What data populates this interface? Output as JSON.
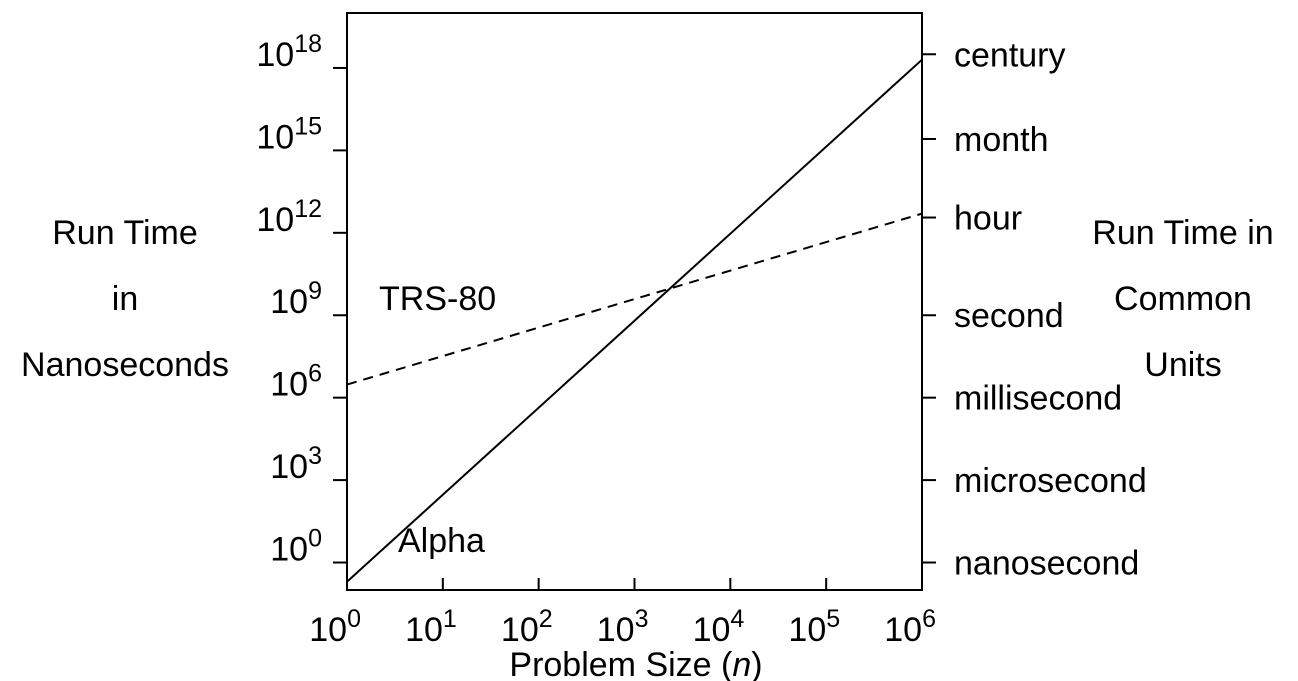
{
  "chart_data": {
    "type": "line",
    "x_scale": "log",
    "y_scale": "log",
    "xlim": [
      1,
      1000000
    ],
    "ylim": [
      0.1,
      1e+20
    ],
    "xlabel_prefix": "Problem Size (",
    "xlabel_var": "n",
    "xlabel_suffix": ")",
    "ylabel_left": [
      "Run Time",
      "in",
      "Nanoseconds"
    ],
    "ylabel_right": [
      "Run Time in",
      "Common",
      "Units"
    ],
    "x_ticks": [
      {
        "value": 1,
        "base": "10",
        "exp": "0"
      },
      {
        "value": 10,
        "base": "10",
        "exp": "1"
      },
      {
        "value": 100,
        "base": "10",
        "exp": "2"
      },
      {
        "value": 1000,
        "base": "10",
        "exp": "3"
      },
      {
        "value": 10000,
        "base": "10",
        "exp": "4"
      },
      {
        "value": 100000,
        "base": "10",
        "exp": "5"
      },
      {
        "value": 1000000,
        "base": "10",
        "exp": "6"
      }
    ],
    "y_ticks_left": [
      {
        "value": 1,
        "base": "10",
        "exp": "0"
      },
      {
        "value": 1000,
        "base": "10",
        "exp": "3"
      },
      {
        "value": 1000000,
        "base": "10",
        "exp": "6"
      },
      {
        "value": 1000000000.0,
        "base": "10",
        "exp": "9"
      },
      {
        "value": 1000000000000.0,
        "base": "10",
        "exp": "12"
      },
      {
        "value": 1000000000000000.0,
        "base": "10",
        "exp": "15"
      },
      {
        "value": 1e+18,
        "base": "10",
        "exp": "18"
      }
    ],
    "y_ticks_right": [
      {
        "value": 1,
        "label": "nanosecond"
      },
      {
        "value": 1000,
        "label": "microsecond"
      },
      {
        "value": 1000000,
        "label": "millisecond"
      },
      {
        "value": 1000000000.0,
        "label": "second"
      },
      {
        "value": 3600000000000.0,
        "label": "hour"
      },
      {
        "value": 2600000000000000.0,
        "label": "month"
      },
      {
        "value": 3.15e+18,
        "label": "century"
      }
    ],
    "series": [
      {
        "name": "Alpha",
        "style": "solid",
        "color": "#000000",
        "points": [
          {
            "x": 1,
            "y": 0.2
          },
          {
            "x": 1000000,
            "y": 2e+18
          }
        ]
      },
      {
        "name": "TRS-80",
        "style": "dashed",
        "color": "#000000",
        "points": [
          {
            "x": 1,
            "y": 3000000.0
          },
          {
            "x": 1000000,
            "y": 5000000000000.0
          }
        ]
      }
    ],
    "grid": false,
    "legend": "inline labels"
  }
}
